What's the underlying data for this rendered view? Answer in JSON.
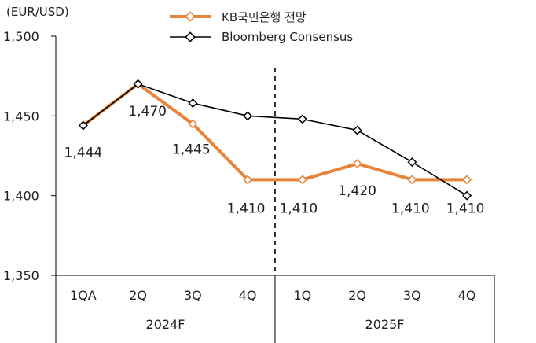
{
  "chart_data": {
    "type": "line",
    "unit_label": "(EUR/USD)",
    "categories": [
      "1QA",
      "2Q",
      "3Q",
      "4Q",
      "1Q",
      "2Q",
      "3Q",
      "4Q"
    ],
    "groups": [
      {
        "label": "2024F",
        "span": [
          0,
          3
        ]
      },
      {
        "label": "2025F",
        "span": [
          4,
          7
        ]
      }
    ],
    "series": [
      {
        "name": "KB국민은행 전망",
        "values": [
          1444,
          1470,
          1445,
          1410,
          1410,
          1420,
          1410,
          1410
        ],
        "labels": [
          "1,444",
          "1,470",
          "1,445",
          "1,410",
          "1,410",
          "1,420",
          "1,410",
          "1,410"
        ],
        "color": "#e8833a"
      },
      {
        "name": "Bloomberg Consensus",
        "values": [
          1444,
          1470,
          1458,
          1450,
          1448,
          1441,
          1421,
          1400
        ],
        "color": "#000000"
      }
    ],
    "ylim": [
      1350,
      1500
    ],
    "yticks": [
      1350,
      1400,
      1450,
      1500
    ],
    "ytick_labels": [
      "1,350",
      "1,400",
      "1,450",
      "1,500"
    ],
    "divider_after_index": 3
  }
}
